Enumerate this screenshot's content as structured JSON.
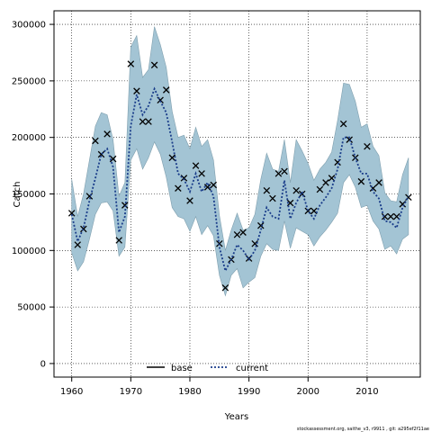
{
  "chart_data": {
    "type": "line",
    "xlabel": "Years",
    "ylabel": "Catch",
    "xlim": [
      1957,
      2019
    ],
    "ylim": [
      -12000,
      312000
    ],
    "xticks": [
      1960,
      1970,
      1980,
      1990,
      2000,
      2010
    ],
    "yticks": [
      0,
      50000,
      100000,
      150000,
      200000,
      250000,
      300000
    ],
    "grid": true,
    "legend_position": "bottom-center",
    "colors": {
      "band": "#a3c4d4",
      "band_edge": "#7f9fae",
      "current": "#1a3d8a",
      "observed": "#000000"
    },
    "x": [
      1960,
      1961,
      1962,
      1963,
      1964,
      1965,
      1966,
      1967,
      1968,
      1969,
      1970,
      1971,
      1972,
      1973,
      1974,
      1975,
      1976,
      1977,
      1978,
      1979,
      1980,
      1981,
      1982,
      1983,
      1984,
      1985,
      1986,
      1987,
      1988,
      1989,
      1990,
      1991,
      1992,
      1993,
      1994,
      1995,
      1996,
      1997,
      1998,
      1999,
      2000,
      2001,
      2002,
      2003,
      2004,
      2005,
      2006,
      2007,
      2008,
      2009,
      2010,
      2011,
      2012,
      2013,
      2014,
      2015,
      2016,
      2017
    ],
    "series": [
      {
        "name": "base",
        "marker": "x",
        "values": [
          133000,
          105000,
          119000,
          148000,
          197000,
          185000,
          203000,
          181000,
          109000,
          140000,
          265000,
          241000,
          214000,
          214000,
          264000,
          233000,
          242000,
          182000,
          155000,
          164000,
          144000,
          175000,
          168000,
          156000,
          158000,
          106000,
          67000,
          92000,
          114000,
          116000,
          93000,
          106000,
          122000,
          153000,
          146000,
          168000,
          170000,
          142000,
          153000,
          150000,
          135000,
          135000,
          154000,
          160000,
          164000,
          178000,
          212000,
          198000,
          182000,
          161000,
          192000,
          155000,
          160000,
          130000,
          130000,
          130000,
          141000,
          147000
        ]
      },
      {
        "name": "current",
        "style": "dotted",
        "values": [
          132000,
          108000,
          120000,
          144000,
          164000,
          185000,
          190000,
          174000,
          116000,
          130000,
          210000,
          238000,
          220000,
          228000,
          243000,
          232000,
          222000,
          196000,
          168000,
          163000,
          152000,
          168000,
          152000,
          160000,
          148000,
          103000,
          82000,
          92000,
          105000,
          100000,
          92000,
          100000,
          118000,
          138000,
          130000,
          128000,
          162000,
          128000,
          142000,
          152000,
          135000,
          128000,
          140000,
          147000,
          155000,
          172000,
          200000,
          200000,
          182000,
          168000,
          168000,
          152000,
          146000,
          126000,
          125000,
          120000,
          138000,
          148000
        ],
        "lower": [
          98000,
          82000,
          90000,
          110000,
          132000,
          142000,
          143000,
          135000,
          95000,
          103000,
          180000,
          190000,
          172000,
          182000,
          196000,
          185000,
          165000,
          138000,
          130000,
          128000,
          117000,
          130000,
          114000,
          122000,
          113000,
          78000,
          60000,
          78000,
          84000,
          67000,
          72000,
          76000,
          95000,
          106000,
          101000,
          100000,
          126000,
          102000,
          120000,
          117000,
          114000,
          104000,
          112000,
          118000,
          125000,
          133000,
          160000,
          167000,
          156000,
          138000,
          140000,
          126000,
          119000,
          101000,
          104000,
          97000,
          110000,
          114000
        ],
        "upper": [
          163000,
          130000,
          150000,
          180000,
          210000,
          222000,
          220000,
          198000,
          148000,
          160000,
          280000,
          290000,
          253000,
          260000,
          298000,
          282000,
          262000,
          223000,
          200000,
          202000,
          190000,
          209000,
          192000,
          198000,
          180000,
          131000,
          100000,
          118000,
          133000,
          118000,
          120000,
          132000,
          163000,
          186000,
          172000,
          170000,
          198000,
          160000,
          198000,
          188000,
          177000,
          162000,
          172000,
          178000,
          187000,
          215000,
          248000,
          247000,
          232000,
          209000,
          212000,
          192000,
          184000,
          151000,
          144000,
          143000,
          167000,
          182000
        ]
      }
    ],
    "legend": [
      {
        "label": "base",
        "style": "solid",
        "color": "#000000"
      },
      {
        "label": "current",
        "style": "dotted",
        "color": "#1a3d8a"
      }
    ]
  },
  "footnote": "stockassessment.org, saithe_v3, r9911 , git: a295ef2f11ae"
}
